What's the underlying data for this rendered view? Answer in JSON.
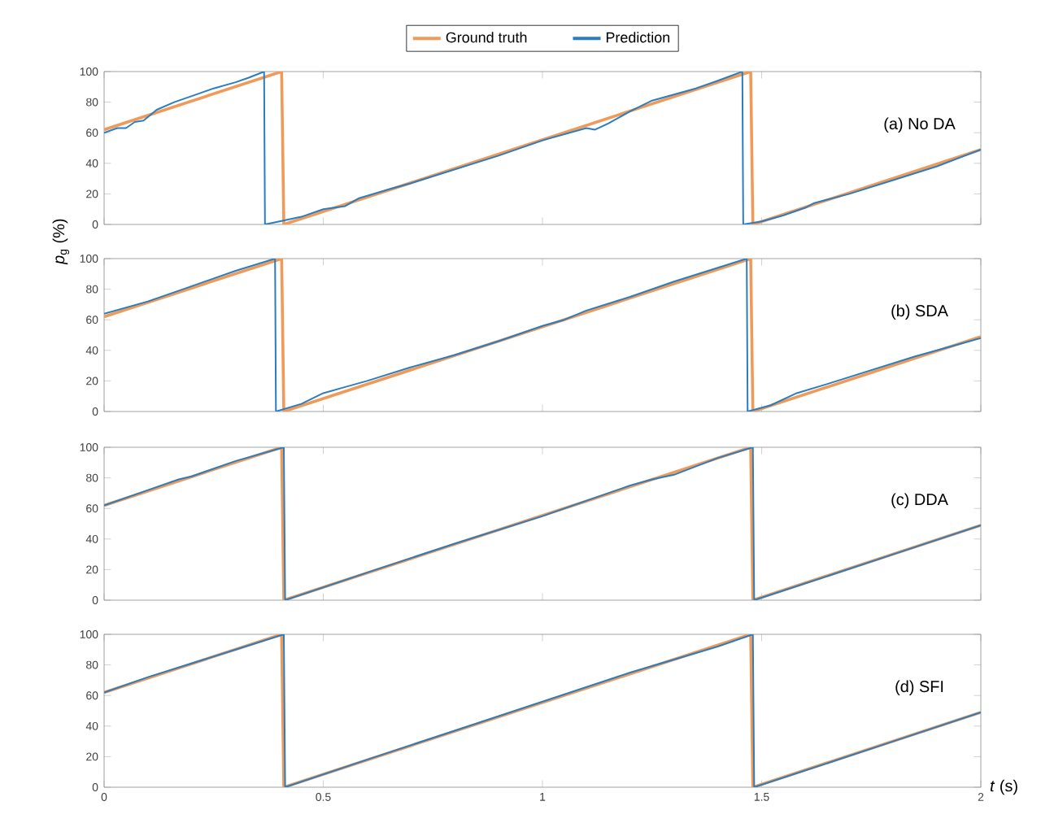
{
  "chart_data": [
    {
      "type": "line",
      "xlim": [
        0,
        2
      ],
      "xticks": [
        0,
        0.5,
        1,
        1.5,
        2
      ],
      "ylim": [
        0,
        100
      ],
      "yticks": [
        0,
        20,
        40,
        60,
        80,
        100
      ],
      "tick_labels": "y",
      "grid": false,
      "legend": "top",
      "ylabel": "*p*$_{g}$ (%)",
      "annotations": [
        "(a) No DA"
      ],
      "series": [
        {
          "name": "Ground truth",
          "color": "#f09a5a",
          "x": [
            0,
            0.405,
            0.41,
            1.475,
            1.48,
            2
          ],
          "values": [
            62,
            100,
            0,
            100,
            0,
            49
          ]
        },
        {
          "name": "Prediction",
          "color": "#2a7dc0",
          "x": [
            0,
            0.03,
            0.05,
            0.07,
            0.09,
            0.12,
            0.16,
            0.2,
            0.25,
            0.3,
            0.33,
            0.365,
            0.367,
            0.4,
            0.45,
            0.5,
            0.55,
            0.58,
            0.65,
            0.7,
            0.8,
            0.9,
            1.0,
            1.1,
            1.12,
            1.15,
            1.2,
            1.25,
            1.3,
            1.35,
            1.4,
            1.456,
            1.458,
            1.5,
            1.55,
            1.6,
            1.62,
            1.7,
            1.8,
            1.9,
            2.0
          ],
          "values": [
            60,
            63,
            63,
            67,
            68,
            75,
            80,
            84,
            89,
            93,
            96,
            100,
            0,
            2,
            5,
            10,
            12,
            17,
            23,
            27,
            36,
            45,
            55,
            63,
            62,
            66,
            74,
            81,
            85,
            89,
            94,
            100,
            0,
            2,
            6,
            11,
            14,
            20,
            29,
            38,
            49
          ]
        }
      ]
    },
    {
      "type": "line",
      "xlim": [
        0,
        2
      ],
      "xticks": [
        0,
        0.5,
        1,
        1.5,
        2
      ],
      "ylim": [
        0,
        100
      ],
      "yticks": [
        0,
        20,
        40,
        60,
        80,
        100
      ],
      "tick_labels": "y",
      "grid": false,
      "annotations": [
        "(b) SDA"
      ],
      "series": [
        {
          "color": "#f09a5a",
          "x": [
            0,
            0.405,
            0.41,
            1.475,
            1.48,
            2
          ],
          "values": [
            62,
            100,
            0,
            100,
            0,
            49
          ]
        },
        {
          "color": "#2a7dc0",
          "x": [
            0,
            0.1,
            0.2,
            0.3,
            0.39,
            0.392,
            0.45,
            0.5,
            0.55,
            0.6,
            0.7,
            0.8,
            0.9,
            1.0,
            1.05,
            1.1,
            1.2,
            1.3,
            1.4,
            1.466,
            1.468,
            1.52,
            1.58,
            1.65,
            1.75,
            1.85,
            1.95,
            2.0
          ],
          "values": [
            64,
            72,
            82,
            92,
            100,
            0,
            5,
            12,
            16,
            20,
            29,
            37,
            46,
            56,
            60,
            66,
            75,
            85,
            94,
            100,
            0,
            4,
            12,
            18,
            27,
            36,
            44,
            48
          ]
        }
      ]
    },
    {
      "type": "line",
      "xlim": [
        0,
        2
      ],
      "xticks": [
        0,
        0.5,
        1,
        1.5,
        2
      ],
      "ylim": [
        0,
        100
      ],
      "yticks": [
        0,
        20,
        40,
        60,
        80,
        100
      ],
      "tick_labels": "y",
      "grid": false,
      "annotations": [
        "(c) DDA"
      ],
      "series": [
        {
          "color": "#f09a5a",
          "x": [
            0,
            0.405,
            0.41,
            1.475,
            1.48,
            2
          ],
          "values": [
            62,
            100,
            0,
            100,
            0,
            49
          ]
        },
        {
          "color": "#2a7dc0",
          "x": [
            0,
            0.1,
            0.17,
            0.2,
            0.3,
            0.41,
            0.413,
            0.6,
            0.8,
            1.0,
            1.2,
            1.25,
            1.3,
            1.4,
            1.48,
            1.483,
            1.6,
            1.8,
            2.0
          ],
          "values": [
            62,
            72,
            79,
            81,
            91,
            100,
            0,
            18,
            37,
            55,
            75,
            79,
            82,
            93,
            100,
            0,
            11,
            30,
            49
          ]
        }
      ]
    },
    {
      "type": "line",
      "xlim": [
        0,
        2
      ],
      "xticks": [
        0,
        0.5,
        1,
        1.5,
        2
      ],
      "ylim": [
        0,
        100
      ],
      "yticks": [
        0,
        20,
        40,
        60,
        80,
        100
      ],
      "grid": false,
      "xlabel": "*t* (s)",
      "annotations": [
        "(d) SFI"
      ],
      "series": [
        {
          "color": "#f09a5a",
          "x": [
            0,
            0.405,
            0.41,
            1.475,
            1.48,
            2
          ],
          "values": [
            62,
            100,
            0,
            100,
            0,
            49
          ]
        },
        {
          "color": "#2a7dc0",
          "x": [
            0,
            0.1,
            0.2,
            0.3,
            0.41,
            0.413,
            0.6,
            0.8,
            1.0,
            1.2,
            1.4,
            1.48,
            1.483,
            1.6,
            1.8,
            2.0
          ],
          "values": [
            62,
            72,
            81,
            90,
            100,
            0,
            18,
            37,
            56,
            75,
            92,
            100,
            0,
            11,
            30,
            49
          ]
        }
      ]
    }
  ]
}
